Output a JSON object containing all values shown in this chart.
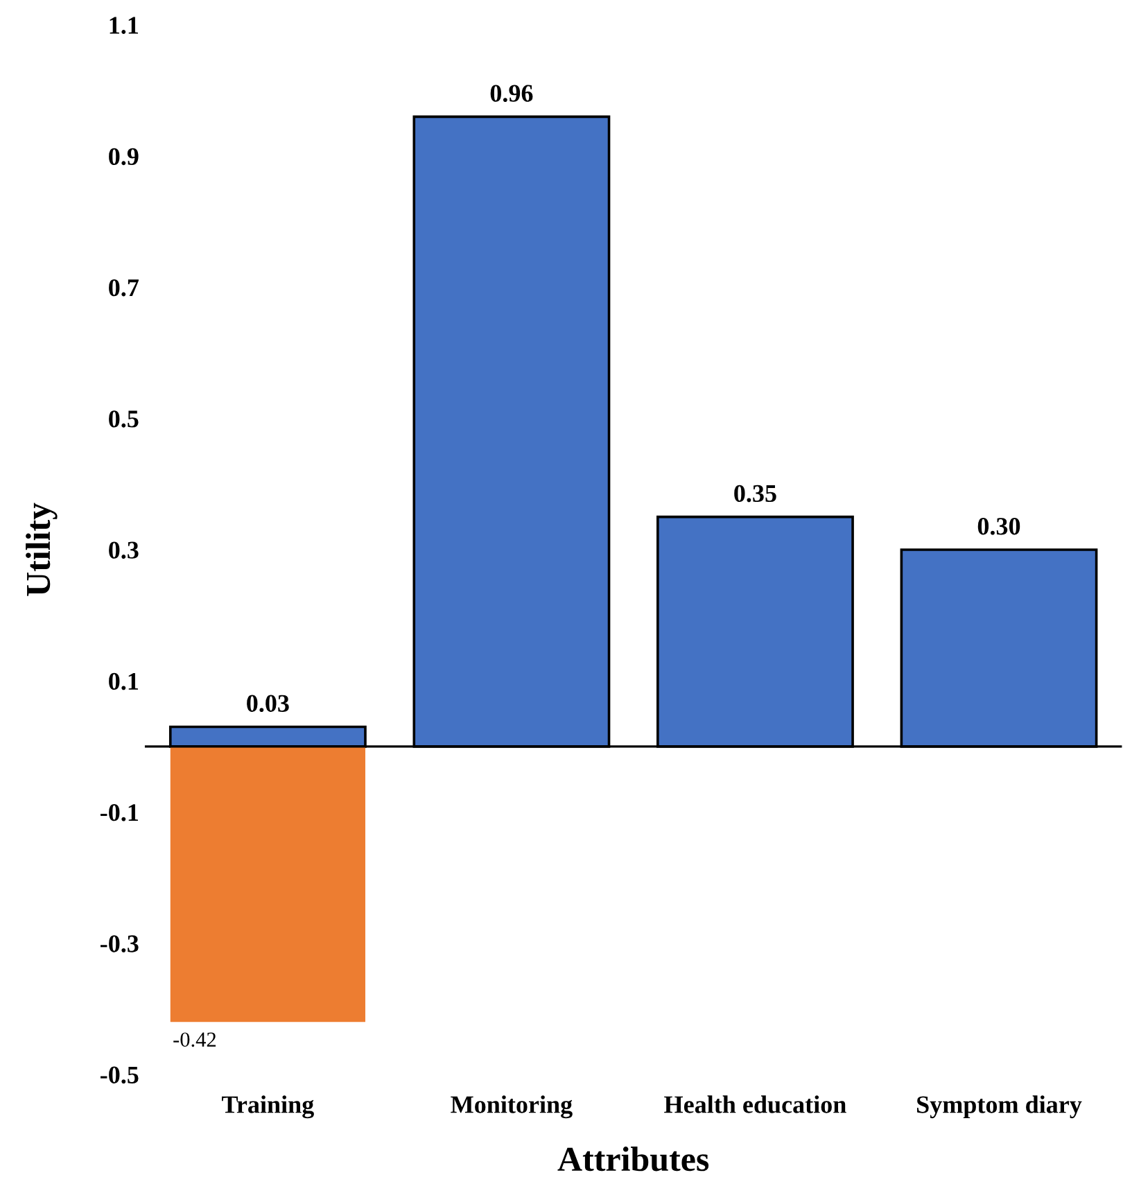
{
  "chart_data": {
    "type": "bar",
    "xlabel": "Attributes",
    "ylabel": "Utility",
    "categories": [
      "Training",
      "Monitoring",
      "Health education",
      "Symptom diary"
    ],
    "series": [
      {
        "color": "#4472c4",
        "values": [
          0.03,
          0.96,
          0.35,
          0.3
        ],
        "value_labels": [
          "0.03",
          "0.96",
          "0.35",
          "0.30"
        ]
      },
      {
        "color": "#ed7d31",
        "values": [
          -0.42,
          null,
          null,
          null
        ],
        "value_labels": [
          "-0.42",
          null,
          null,
          null
        ]
      }
    ],
    "ylim": [
      -0.5,
      1.1
    ],
    "yticks": [
      -0.5,
      -0.3,
      -0.1,
      0.1,
      0.3,
      0.5,
      0.7,
      0.9,
      1.1
    ],
    "grid": false,
    "legend": false
  }
}
